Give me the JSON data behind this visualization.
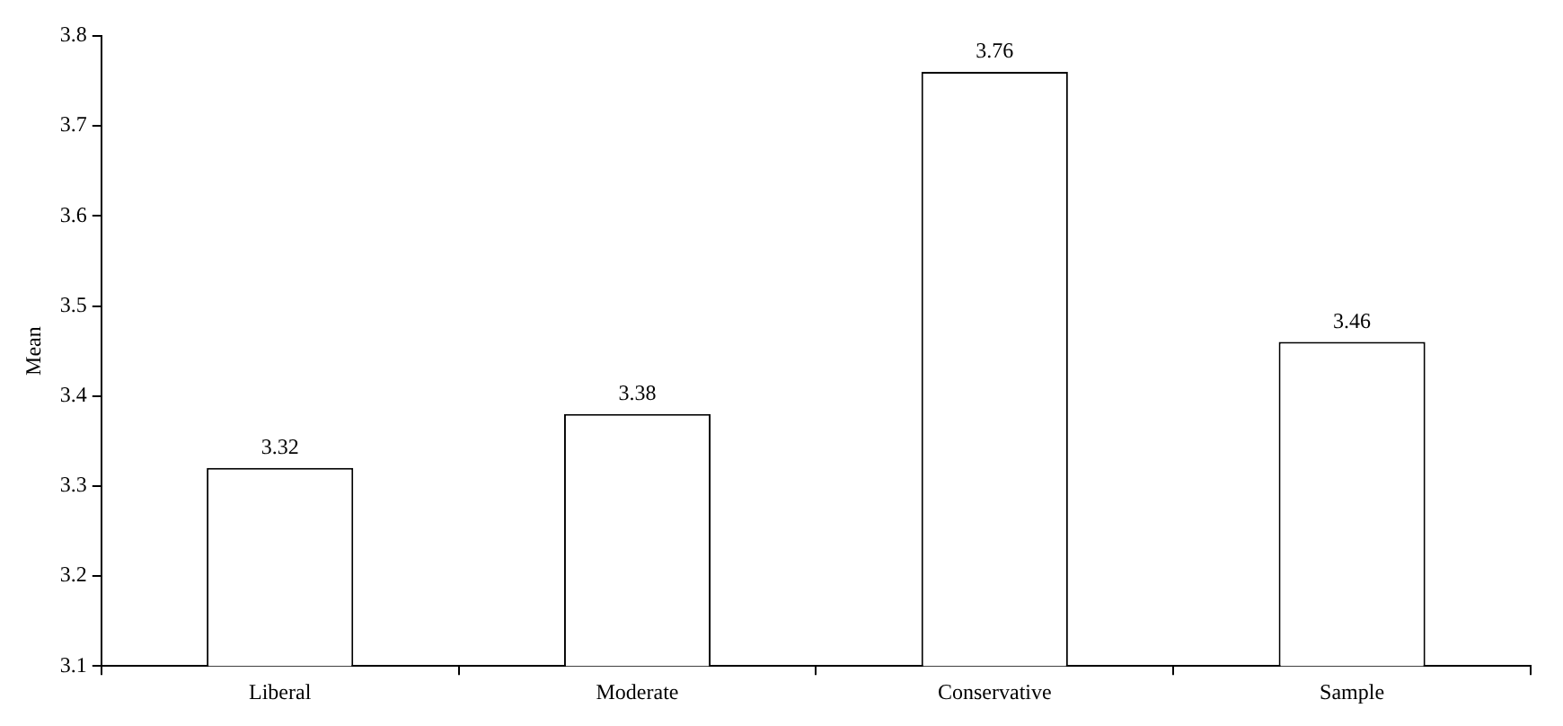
{
  "chart_data": {
    "type": "bar",
    "ylabel": "Mean",
    "categories": [
      "Liberal",
      "Moderate",
      "Conservative",
      "Sample"
    ],
    "values": [
      3.32,
      3.38,
      3.76,
      3.46
    ],
    "color": "#ffffff",
    "ylim": [
      3.1,
      3.8
    ],
    "yticks": [
      3.1,
      3.2,
      3.3,
      3.4,
      3.5,
      3.6,
      3.7,
      3.8
    ],
    "grid": false,
    "legend": false,
    "data_labels": true
  }
}
